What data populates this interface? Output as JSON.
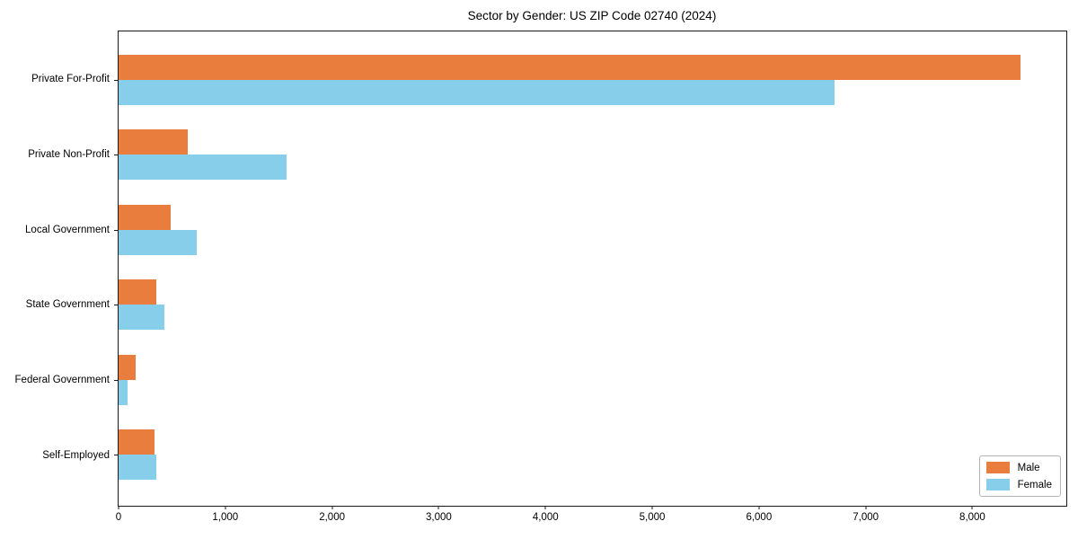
{
  "chart_data": {
    "type": "bar",
    "orientation": "horizontal",
    "title": "Sector by Gender: US ZIP Code 02740 (2024)",
    "categories": [
      "Private For-Profit",
      "Private Non-Profit",
      "Local Government",
      "State Government",
      "Federal Government",
      "Self-Employed"
    ],
    "series": [
      {
        "name": "Male",
        "color": "#e87d3e",
        "values": [
          8450,
          650,
          490,
          350,
          160,
          335
        ]
      },
      {
        "name": "Female",
        "color": "#87ceeb",
        "values": [
          6710,
          1570,
          730,
          430,
          85,
          355
        ]
      }
    ],
    "xlabel": "",
    "ylabel": "",
    "xlim": [
      0,
      8880
    ],
    "xticks": [
      0,
      1000,
      2000,
      3000,
      4000,
      5000,
      6000,
      7000,
      8000
    ],
    "xtick_labels": [
      "0",
      "1,000",
      "2,000",
      "3,000",
      "4,000",
      "5,000",
      "6,000",
      "7,000",
      "8,000"
    ],
    "grid": false,
    "legend_position": "lower right"
  },
  "colors": {
    "background": "#ffffff",
    "spine": "#1a1a1a",
    "legend_border": "#b3b3b3"
  }
}
